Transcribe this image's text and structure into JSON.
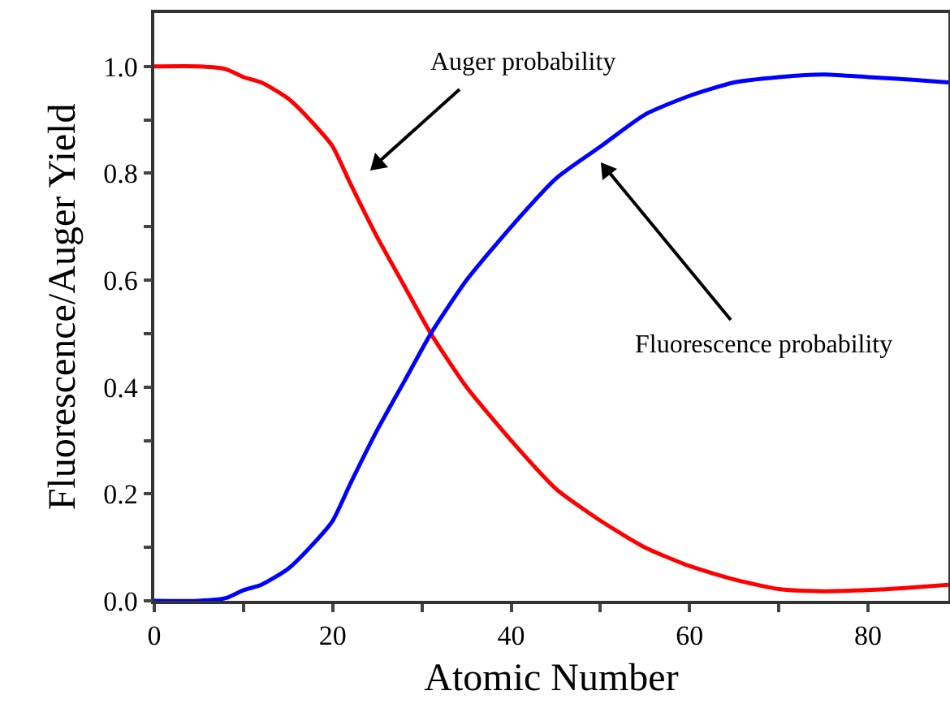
{
  "chart_data": {
    "type": "line",
    "xlabel": "Atomic Number",
    "ylabel": "Fluorescence/Auger Yield",
    "x": [
      0,
      5,
      8,
      10,
      12,
      15,
      18,
      20,
      22,
      25,
      28,
      31,
      35,
      40,
      45,
      50,
      55,
      60,
      65,
      70,
      75,
      80,
      85,
      89
    ],
    "series": [
      {
        "color": "#ff0000",
        "values": [
          1.0,
          1.0,
          0.995,
          0.98,
          0.97,
          0.94,
          0.89,
          0.85,
          0.78,
          0.68,
          0.59,
          0.5,
          0.4,
          0.3,
          0.21,
          0.15,
          0.1,
          0.065,
          0.04,
          0.022,
          0.018,
          0.02,
          0.025,
          0.03
        ]
      },
      {
        "color": "#0000ff",
        "values": [
          0,
          0,
          0.005,
          0.02,
          0.03,
          0.06,
          0.11,
          0.15,
          0.22,
          0.32,
          0.41,
          0.5,
          0.6,
          0.7,
          0.79,
          0.85,
          0.91,
          0.945,
          0.97,
          0.98,
          0.985,
          0.98,
          0.975,
          0.97
        ]
      }
    ],
    "xlim": [
      0,
      89
    ],
    "xticks": [
      0,
      {
        "value": 10,
        "label": null
      },
      20,
      {
        "value": 30,
        "label": null
      },
      40,
      {
        "value": 50,
        "label": null
      },
      60,
      {
        "value": 70,
        "label": null
      },
      80
    ],
    "ylim": [
      0,
      1.1
    ],
    "yticks": [
      {
        "value": 0,
        "label": "0.0"
      },
      {
        "value": 0.1,
        "label": null
      },
      {
        "value": 0.2,
        "label": "0.2"
      },
      {
        "value": 0.3,
        "label": null
      },
      {
        "value": 0.4,
        "label": "0.4"
      },
      {
        "value": 0.5,
        "label": null
      },
      {
        "value": 0.6,
        "label": "0.6"
      },
      {
        "value": 0.7,
        "label": null
      },
      {
        "value": 0.8,
        "label": "0.8"
      },
      {
        "value": 0.9,
        "label": null
      },
      {
        "value": 1.0,
        "label": "1.0"
      }
    ],
    "annotations": [
      "Auger probability",
      "Fluorescence probability"
    ],
    "grid": false,
    "marker": "none",
    "line_style": "solid"
  }
}
